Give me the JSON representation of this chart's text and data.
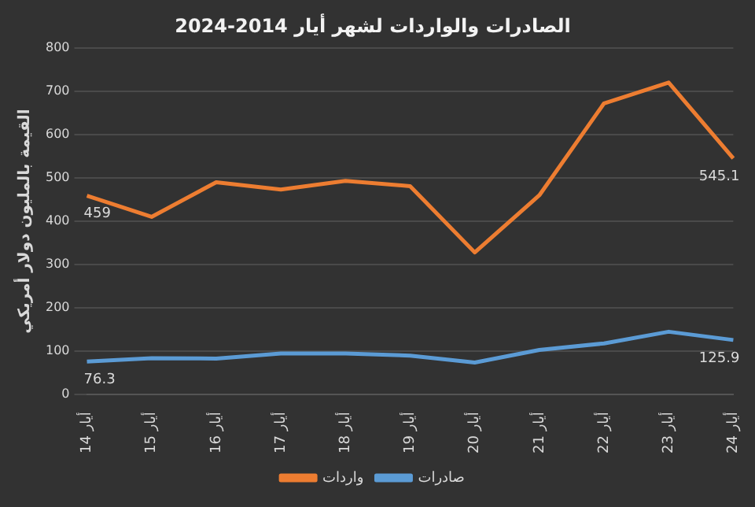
{
  "chart_data": {
    "type": "line",
    "title": "الصادرات والواردات لشهر أيار 2014-2024",
    "ylabel": "القيمة بالمليون دولار أمريكي",
    "categories": [
      "14 أيار",
      "15 أيار",
      "16 أيار",
      "17 أيار",
      "18 أيار",
      "19 أيار",
      "20 أيار",
      "21 أيار",
      "22 أيار",
      "23 أيار",
      "24 أيار"
    ],
    "series": [
      {
        "name": "واردات",
        "color": "#ed7d31",
        "values": [
          459,
          410,
          490,
          473,
          493,
          481,
          328,
          460,
          672,
          720,
          545.1
        ],
        "value_labels": [
          "459",
          null,
          null,
          null,
          null,
          null,
          null,
          null,
          null,
          null,
          "545.1"
        ]
      },
      {
        "name": "صادرات",
        "color": "#5b9bd5",
        "values": [
          76.3,
          84,
          83,
          95,
          95,
          90,
          74,
          103,
          118,
          145,
          125.9
        ],
        "value_labels": [
          "76.3",
          null,
          null,
          null,
          null,
          null,
          null,
          null,
          null,
          null,
          "125.9"
        ]
      }
    ],
    "ylim": [
      0,
      800
    ],
    "yticks": [
      0,
      100,
      200,
      300,
      400,
      500,
      600,
      700,
      800
    ],
    "grid": "y",
    "legend": "bottom",
    "marker": "none",
    "line_style": "solid"
  }
}
